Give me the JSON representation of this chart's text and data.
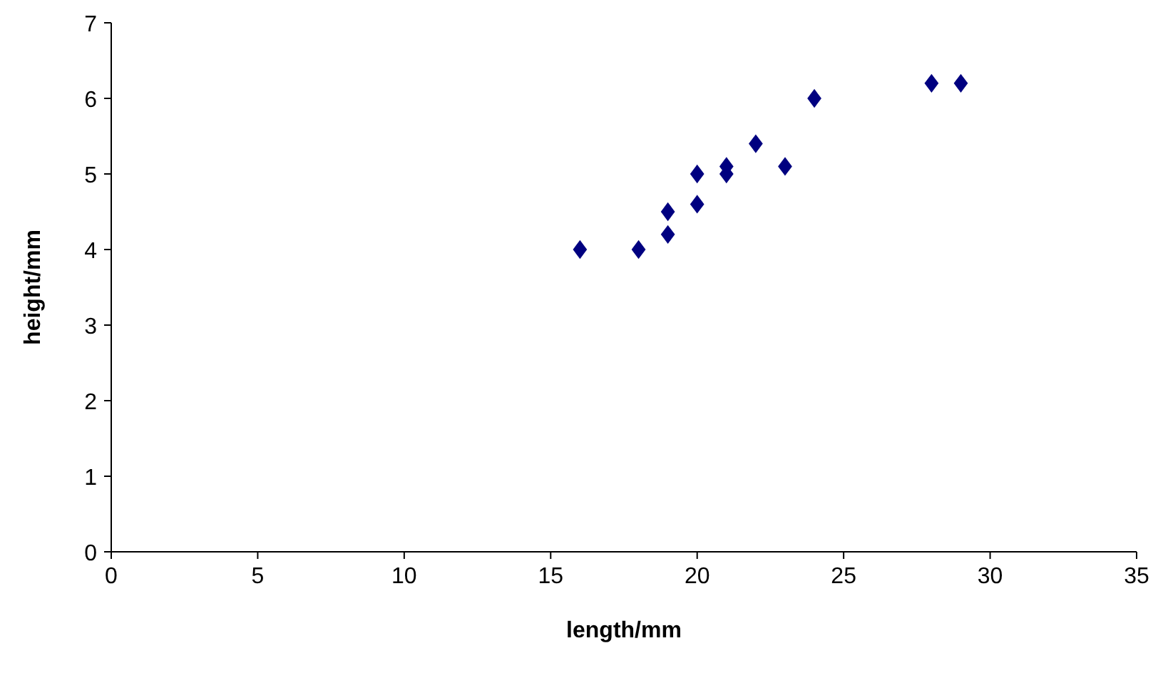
{
  "chart_data": {
    "type": "scatter",
    "xlabel": "length/mm",
    "ylabel": "height/mm",
    "series": [
      {
        "color": "#000080",
        "x": [
          16,
          18,
          19,
          19,
          20,
          20,
          21,
          21,
          22,
          23,
          24,
          28,
          29
        ],
        "values": [
          4,
          4,
          4.2,
          4.5,
          4.6,
          5,
          5,
          5.1,
          5.4,
          5.1,
          6,
          6.2,
          6.2
        ]
      }
    ],
    "xlim": [
      0,
      35
    ],
    "xticks": [
      0,
      5,
      10,
      15,
      20,
      25,
      30,
      35
    ],
    "ylim": [
      0,
      7
    ],
    "yticks": [
      0,
      1,
      2,
      3,
      4,
      5,
      6,
      7
    ],
    "marker": "diamond"
  }
}
